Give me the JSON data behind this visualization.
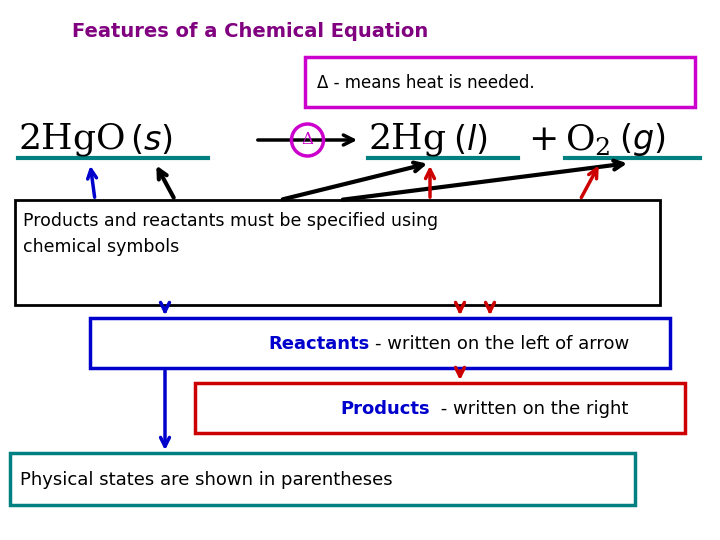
{
  "title": "Features of a Chemical Equation",
  "title_color": "#800080",
  "title_fontsize": 14,
  "bg_color": "#ffffff",
  "delta_box_text": "Δ - means heat is needed.",
  "products_reactants_text": "Products and reactants must be specified using\nchemical symbols",
  "reactants_text_bold": "Reactants",
  "reactants_text_rest": "- written on the left of arrow",
  "products_text_bold": "Products",
  "products_text_rest": " - written on the right",
  "physical_states_text": "Physical states are shown in parentheses",
  "magenta": "#cc00cc",
  "blue": "#0000cc",
  "red": "#cc0000",
  "teal": "#008080",
  "black": "#000000",
  "white": "#ffffff",
  "eq_2hgo": "2HgO(",
  "eq_s": "s",
  "eq_close": ")",
  "eq_2hg": "2Hg(",
  "eq_l": "l",
  "eq_o2": "O",
  "eq_2": "2",
  "eq_g": "g"
}
